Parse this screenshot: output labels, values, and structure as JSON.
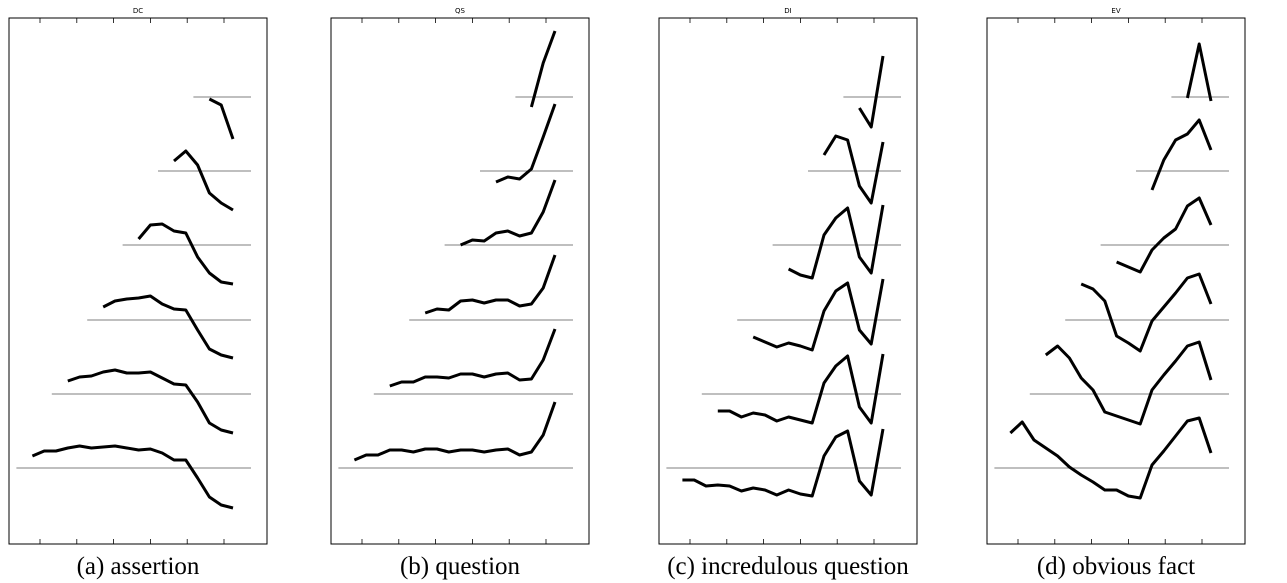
{
  "panels": [
    {
      "title": "DC",
      "caption": "(a) assertion",
      "contours": [
        [
          -2,
          -8,
          -42
        ],
        [
          10,
          20,
          6,
          -22,
          -32,
          -39
        ],
        [
          6,
          20,
          21,
          14,
          12,
          -12,
          -28,
          -37,
          -39
        ],
        [
          13,
          19,
          21,
          22,
          24,
          16,
          11,
          10,
          -10,
          -29,
          -35,
          -38
        ],
        [
          13,
          17,
          18,
          22,
          24,
          21,
          21,
          22,
          16,
          10,
          9,
          -8,
          -29,
          -36,
          -39
        ],
        [
          12,
          17,
          17,
          20,
          22,
          20,
          21,
          22,
          20,
          18,
          19,
          15,
          8,
          8,
          -10,
          -29,
          -37,
          -40
        ]
      ]
    },
    {
      "title": "QS",
      "caption": "(b) question",
      "contours": [
        [
          -10,
          34,
          66
        ],
        [
          -11,
          -6,
          -8,
          2,
          34,
          67
        ],
        [
          0,
          5,
          4,
          12,
          14,
          9,
          12,
          33,
          65
        ],
        [
          7,
          11,
          10,
          19,
          20,
          17,
          20,
          20,
          14,
          16,
          32,
          65
        ],
        [
          8,
          12,
          12,
          17,
          17,
          16,
          20,
          20,
          17,
          20,
          21,
          14,
          15,
          34,
          65
        ],
        [
          8,
          13,
          13,
          18,
          18,
          16,
          19,
          19,
          16,
          18,
          18,
          16,
          18,
          19,
          13,
          16,
          33,
          66
        ]
      ]
    },
    {
      "title": "DI",
      "caption": "(c) incredulous question",
      "contours": [
        [
          -11,
          -30,
          41
        ],
        [
          16,
          35,
          31,
          -15,
          -32,
          29
        ],
        [
          -24,
          -30,
          -33,
          10,
          27,
          37,
          -12,
          -28,
          40
        ],
        [
          -17,
          -22,
          -27,
          -23,
          -26,
          -30,
          9,
          29,
          37,
          -10,
          -24,
          41
        ],
        [
          -17,
          -17,
          -23,
          -19,
          -21,
          -27,
          -23,
          -26,
          -29,
          11,
          28,
          38,
          -13,
          -29,
          40
        ],
        [
          -12,
          -12,
          -18,
          -17,
          -18,
          -23,
          -20,
          -22,
          -27,
          -22,
          -26,
          -28,
          12,
          31,
          37,
          -13,
          -27,
          39
        ]
      ]
    },
    {
      "title": "EV",
      "caption": "(d) obvious fact",
      "contours": [
        [
          -1,
          53,
          -4
        ],
        [
          -19,
          11,
          31,
          37,
          51,
          21
        ],
        [
          -17,
          -22,
          -27,
          -5,
          7,
          16,
          39,
          47,
          20
        ],
        [
          36,
          31,
          19,
          -16,
          -23,
          -31,
          -1,
          13,
          27,
          42,
          46,
          16
        ],
        [
          39,
          48,
          36,
          16,
          4,
          -18,
          -22,
          -26,
          -30,
          4,
          19,
          33,
          48,
          52,
          14
        ],
        [
          35,
          46,
          28,
          20,
          12,
          1,
          -7,
          -14,
          -22,
          -22,
          -28,
          -30,
          3,
          17,
          32,
          47,
          50,
          15
        ]
      ]
    }
  ]
}
